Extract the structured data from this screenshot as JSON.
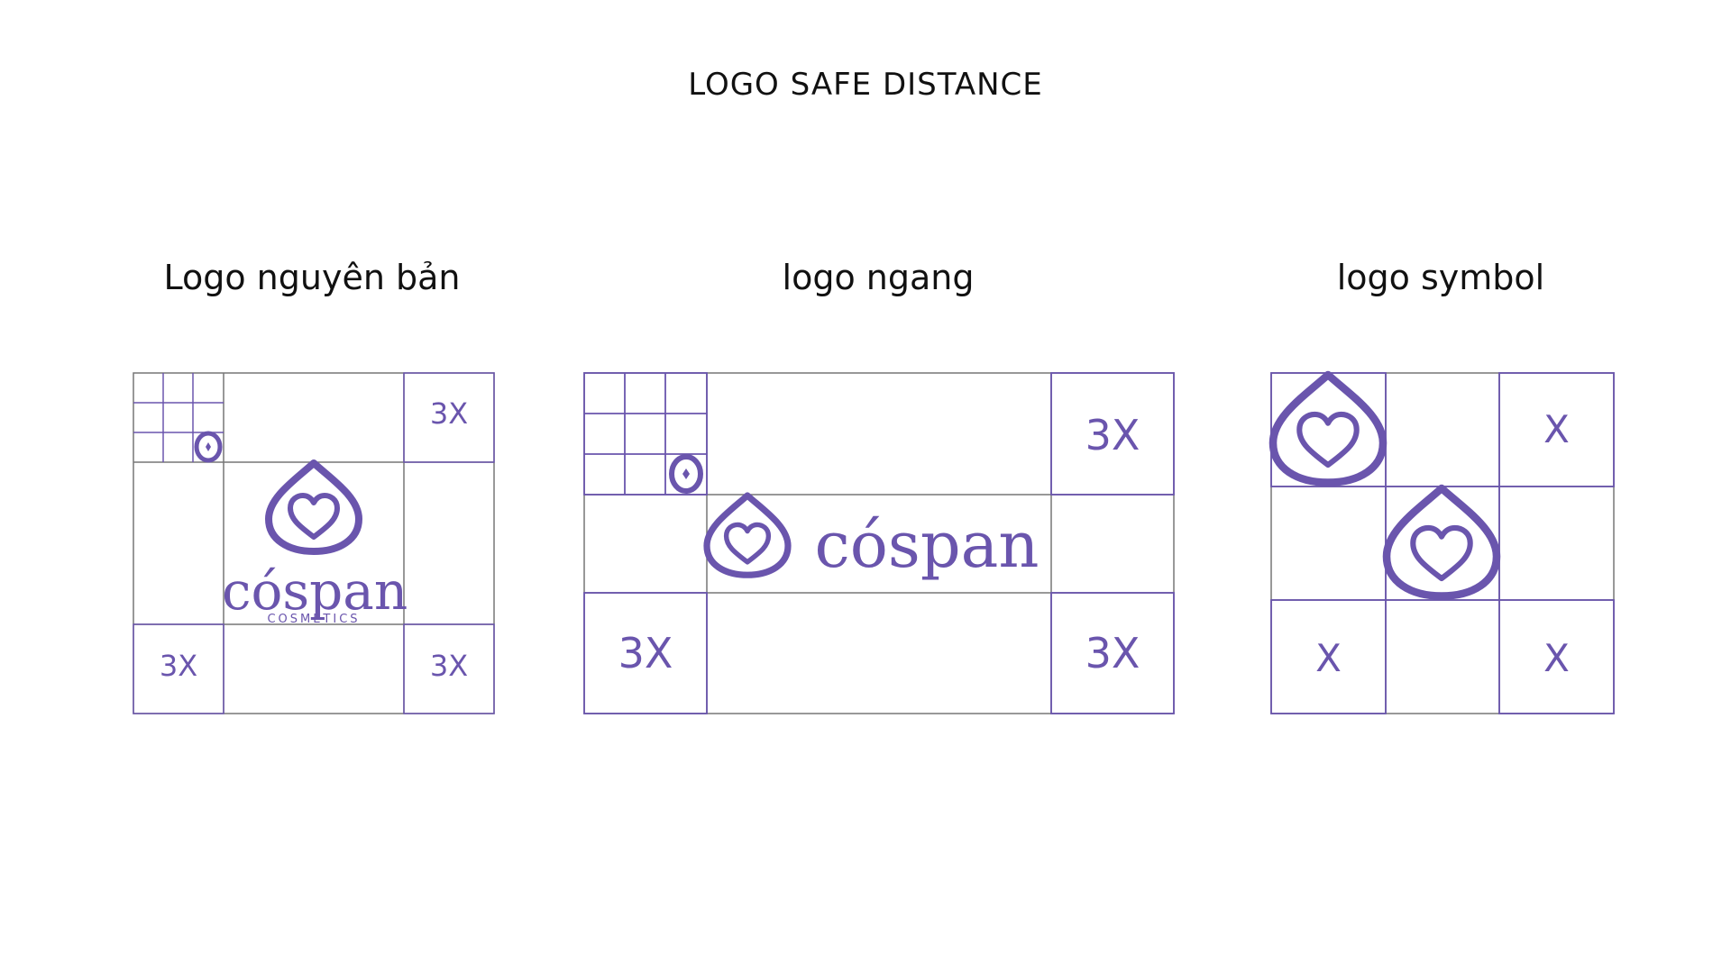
{
  "title": "LOGO SAFE DISTANCE",
  "colors": {
    "accent": "#6a55ad",
    "grid": "#777777",
    "text": "#111111"
  },
  "sections": [
    {
      "title": "Logo nguyên bản",
      "labels": [
        "3X",
        "3X",
        "3X"
      ],
      "wordmark": "cóspan",
      "subtext": "COSMETICS"
    },
    {
      "title": "logo ngang",
      "labels": [
        "3X",
        "3X",
        "3X"
      ],
      "wordmark": "cóspan"
    },
    {
      "title": "logo symbol",
      "labels": [
        "X",
        "X",
        "X"
      ]
    }
  ]
}
